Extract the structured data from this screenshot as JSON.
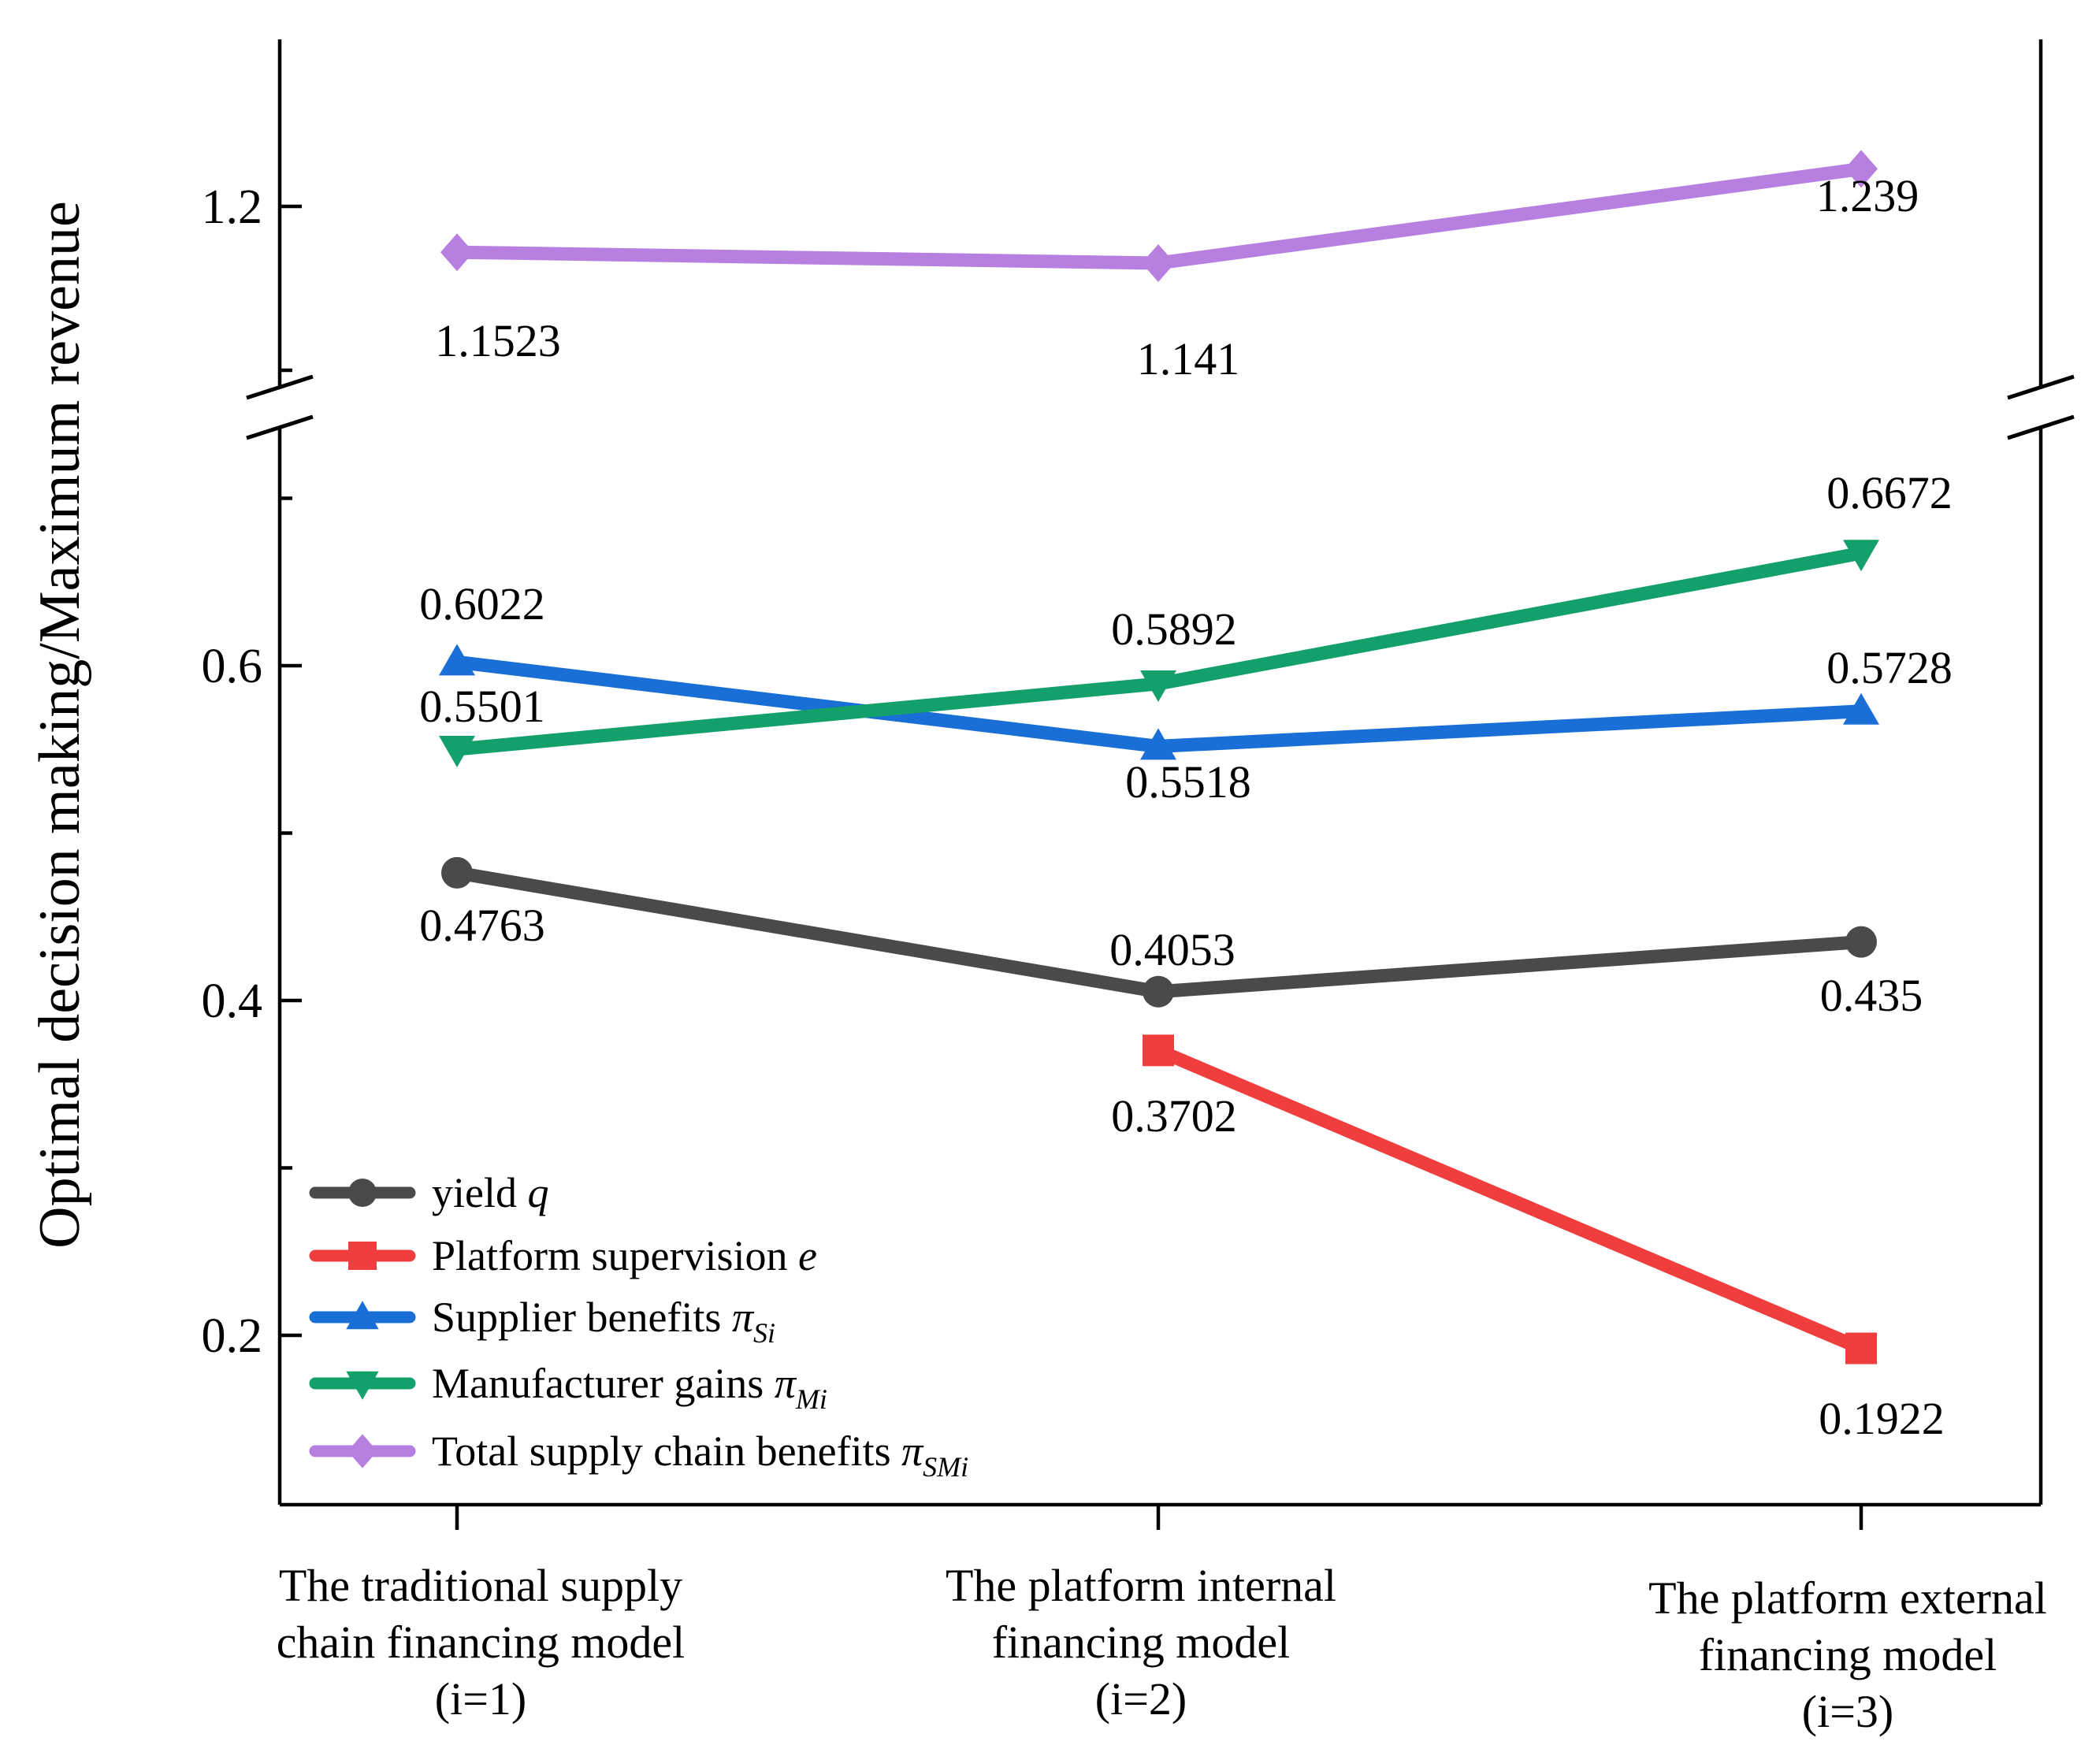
{
  "chart_data": {
    "type": "line",
    "title": "",
    "xlabel": "",
    "ylabel": "Optimal decision making/Maximum revenue",
    "categories": [
      [
        "The traditional supply",
        "chain financing model",
        "(i=1)"
      ],
      [
        "The platform internal",
        "financing model",
        "(i=2)"
      ],
      [
        "The platform external",
        "financing model",
        "(i=3)"
      ]
    ],
    "y_axis_lower": {
      "range": [
        0.1,
        0.75
      ],
      "ticks": [
        0.2,
        0.4,
        0.6
      ],
      "tick_labels": [
        "0.2",
        "0.4",
        "0.6"
      ]
    },
    "y_axis_upper": {
      "range": [
        1.08,
        1.29
      ],
      "ticks": [
        1.2
      ],
      "tick_labels": [
        "1.2"
      ]
    },
    "axis_break": true,
    "grid": false,
    "legend_position": "bottom-left",
    "series": [
      {
        "name": "yield",
        "symbol": "q",
        "subscript": "",
        "color": "#4a4a4a",
        "marker": "circle",
        "panel": "lower",
        "x": [
          0,
          1,
          2
        ],
        "values": [
          0.4763,
          0.4053,
          0.435
        ],
        "labels": [
          "0.4763",
          "0.4053",
          "0.435"
        ]
      },
      {
        "name": "Platform supervision",
        "symbol": "e",
        "subscript": "",
        "color": "#f03d3d",
        "marker": "square",
        "panel": "lower",
        "x": [
          1,
          2
        ],
        "values": [
          0.3702,
          0.1922
        ],
        "labels": [
          "0.3702",
          "0.1922"
        ]
      },
      {
        "name": "Supplier benefits",
        "symbol": "π",
        "subscript": "Si",
        "color": "#1a6fd6",
        "marker": "triangle-up",
        "panel": "lower",
        "x": [
          0,
          1,
          2
        ],
        "values": [
          0.6022,
          0.5518,
          0.5728
        ],
        "labels": [
          "0.6022",
          "0.5518",
          "0.5728"
        ]
      },
      {
        "name": "Manufacturer gains",
        "symbol": "π",
        "subscript": "Mi",
        "color": "#13a06a",
        "marker": "triangle-down",
        "panel": "lower",
        "x": [
          0,
          1,
          2
        ],
        "values": [
          0.5501,
          0.5892,
          0.6672
        ],
        "labels": [
          "0.5501",
          "0.5892",
          "0.6672"
        ]
      },
      {
        "name": "Total supply chain benefits",
        "symbol": "π",
        "subscript": "SMi",
        "color": "#b77fe0",
        "marker": "diamond",
        "panel": "upper",
        "x": [
          0,
          1,
          2
        ],
        "values": [
          1.1523,
          1.141,
          1.239
        ],
        "labels": [
          "1.1523",
          "1.141",
          "1.239"
        ]
      }
    ]
  }
}
